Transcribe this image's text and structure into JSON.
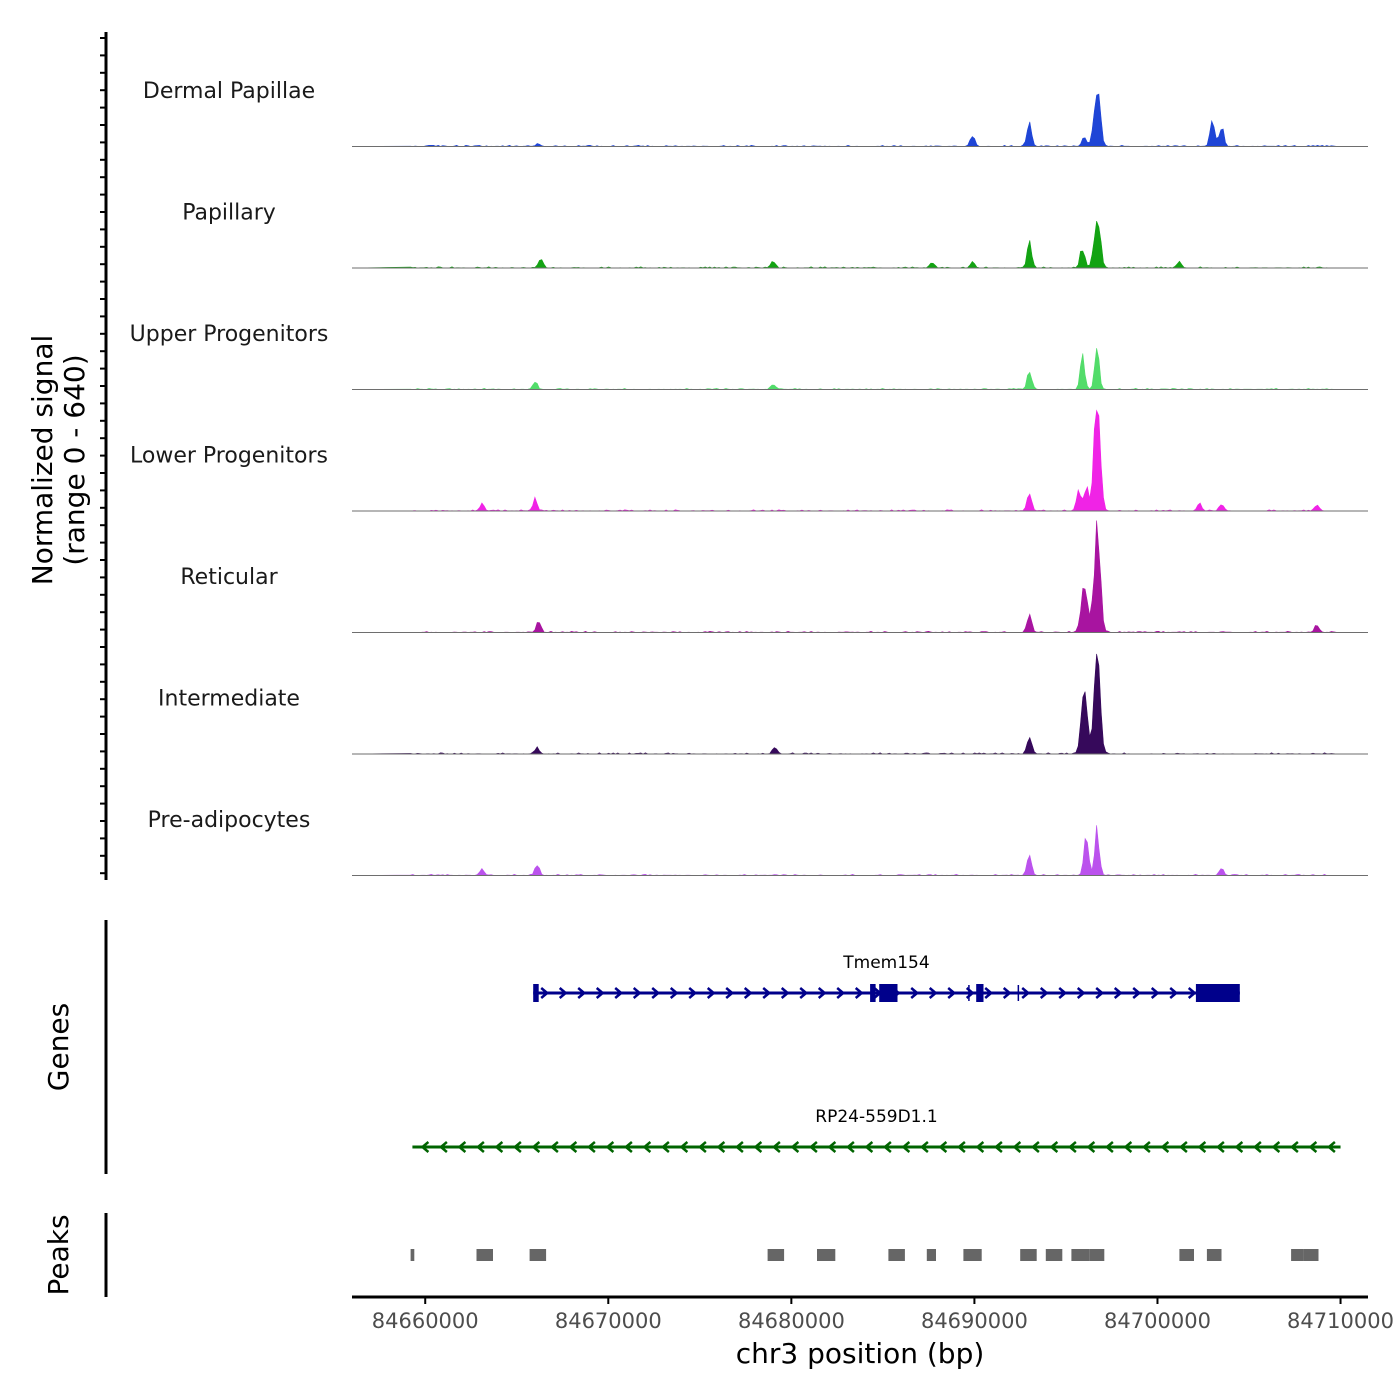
{
  "chart_data": {
    "type": "area",
    "title": "",
    "chromosome": "chr3",
    "xlabel": "chr3 position (bp)",
    "xlim": [
      84656000,
      84711500
    ],
    "xticks": [
      84660000,
      84670000,
      84680000,
      84690000,
      84700000,
      84710000
    ],
    "xtick_labels": [
      "84660000",
      "84670000",
      "84680000",
      "84690000",
      "84700000",
      "84710000"
    ],
    "ylabel_line1": "Normalized signal",
    "ylabel_line2": "(range 0 - 640)",
    "ylim": [
      0,
      640
    ],
    "coverage_tracks": [
      {
        "name": "Dermal Papillae",
        "color": "#1f45d6",
        "peaks": [
          [
            84666200,
            15
          ],
          [
            84689900,
            70
          ],
          [
            84693000,
            160
          ],
          [
            84696000,
            60
          ],
          [
            84696700,
            360
          ],
          [
            84703000,
            160
          ],
          [
            84703500,
            120
          ]
        ]
      },
      {
        "name": "Papillary",
        "color": "#13a313",
        "peaks": [
          [
            84666300,
            55
          ],
          [
            84679000,
            45
          ],
          [
            84687700,
            30
          ],
          [
            84689900,
            35
          ],
          [
            84693000,
            150
          ],
          [
            84695900,
            130
          ],
          [
            84696700,
            320
          ],
          [
            84701200,
            40
          ]
        ]
      },
      {
        "name": "Upper Progenitors",
        "color": "#52dc6a",
        "peaks": [
          [
            84666000,
            45
          ],
          [
            84679000,
            25
          ],
          [
            84693000,
            120
          ],
          [
            84695900,
            190
          ],
          [
            84696700,
            250
          ]
        ]
      },
      {
        "name": "Lower Progenitors",
        "color": "#f023e6",
        "peaks": [
          [
            84663100,
            45
          ],
          [
            84666000,
            70
          ],
          [
            84693000,
            130
          ],
          [
            84695700,
            130
          ],
          [
            84696100,
            150
          ],
          [
            84696700,
            640
          ],
          [
            84702300,
            45
          ],
          [
            84703500,
            45
          ],
          [
            84708700,
            40
          ]
        ]
      },
      {
        "name": "Reticular",
        "color": "#a814a0",
        "peaks": [
          [
            84666200,
            70
          ],
          [
            84693000,
            120
          ],
          [
            84696000,
            320
          ],
          [
            84696700,
            640
          ],
          [
            84708700,
            40
          ]
        ]
      },
      {
        "name": "Intermediate",
        "color": "#36095b",
        "peaks": [
          [
            84666100,
            35
          ],
          [
            84679100,
            45
          ],
          [
            84693000,
            120
          ],
          [
            84696000,
            360
          ],
          [
            84696700,
            590
          ]
        ]
      },
      {
        "name": "Pre-adipocytes",
        "color": "#bb52ed",
        "peaks": [
          [
            84663100,
            35
          ],
          [
            84666100,
            70
          ],
          [
            84693000,
            130
          ],
          [
            84696100,
            280
          ],
          [
            84696700,
            290
          ],
          [
            84703500,
            40
          ]
        ]
      }
    ],
    "genes_track_label": "Genes",
    "genes": [
      {
        "name": "Tmem154",
        "strand": "+",
        "start": 84665900,
        "end": 84704500,
        "color": "#00008b",
        "exons": [
          [
            84665900,
            84666200
          ],
          [
            84684300,
            84684600
          ],
          [
            84684800,
            84685800
          ],
          [
            84690100,
            84690500
          ],
          [
            84702100,
            84704500
          ]
        ],
        "marks": [
          84689700,
          84692400
        ]
      },
      {
        "name": "RP24-559D1.1",
        "strand": "-",
        "start": 84659300,
        "end": 84710000,
        "color": "#006400",
        "exons": [],
        "marks": []
      }
    ],
    "peaks_track_label": "Peaks",
    "peak_color": "#666666",
    "peak_regions": [
      [
        84659200,
        84659400
      ],
      [
        84662800,
        84663700
      ],
      [
        84665700,
        84666600
      ],
      [
        84678700,
        84679600
      ],
      [
        84681400,
        84682400
      ],
      [
        84685300,
        84686200
      ],
      [
        84687400,
        84687900
      ],
      [
        84689400,
        84690400
      ],
      [
        84692500,
        84693400
      ],
      [
        84693900,
        84694800
      ],
      [
        84695300,
        84696300
      ],
      [
        84696300,
        84697100
      ],
      [
        84701200,
        84702000
      ],
      [
        84702700,
        84703500
      ],
      [
        84707300,
        84708000
      ],
      [
        84708000,
        84708800
      ]
    ]
  }
}
